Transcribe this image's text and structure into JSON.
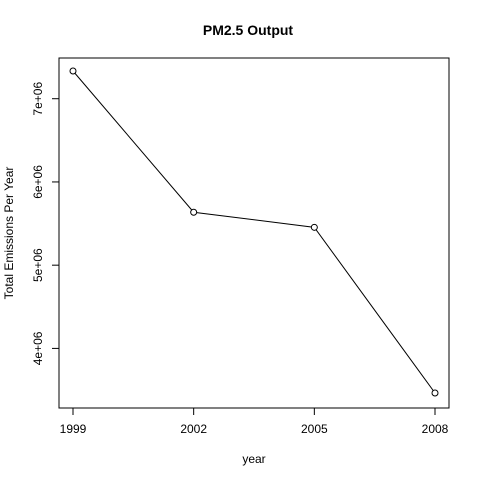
{
  "chart_data": {
    "type": "line",
    "title": "PM2.5 Output",
    "xlabel": "year",
    "ylabel": "Total Emissions Per Year",
    "x": [
      1999,
      2002,
      2005,
      2008
    ],
    "x_ticks": [
      "1999",
      "2002",
      "2005",
      "2008"
    ],
    "xlim": [
      1999,
      2008
    ],
    "y_ticks": [
      4000000,
      5000000,
      6000000,
      7000000
    ],
    "y_tick_labels": [
      "4e+06",
      "5e+06",
      "6e+06",
      "7e+06"
    ],
    "ylim": [
      3464206,
      7332967
    ],
    "series": [
      {
        "values": [
          7332967,
          5635780,
          5454703,
          3464206
        ],
        "marker": "open-circle"
      }
    ],
    "grid": false,
    "legend": "none",
    "line_color": "#000000"
  }
}
